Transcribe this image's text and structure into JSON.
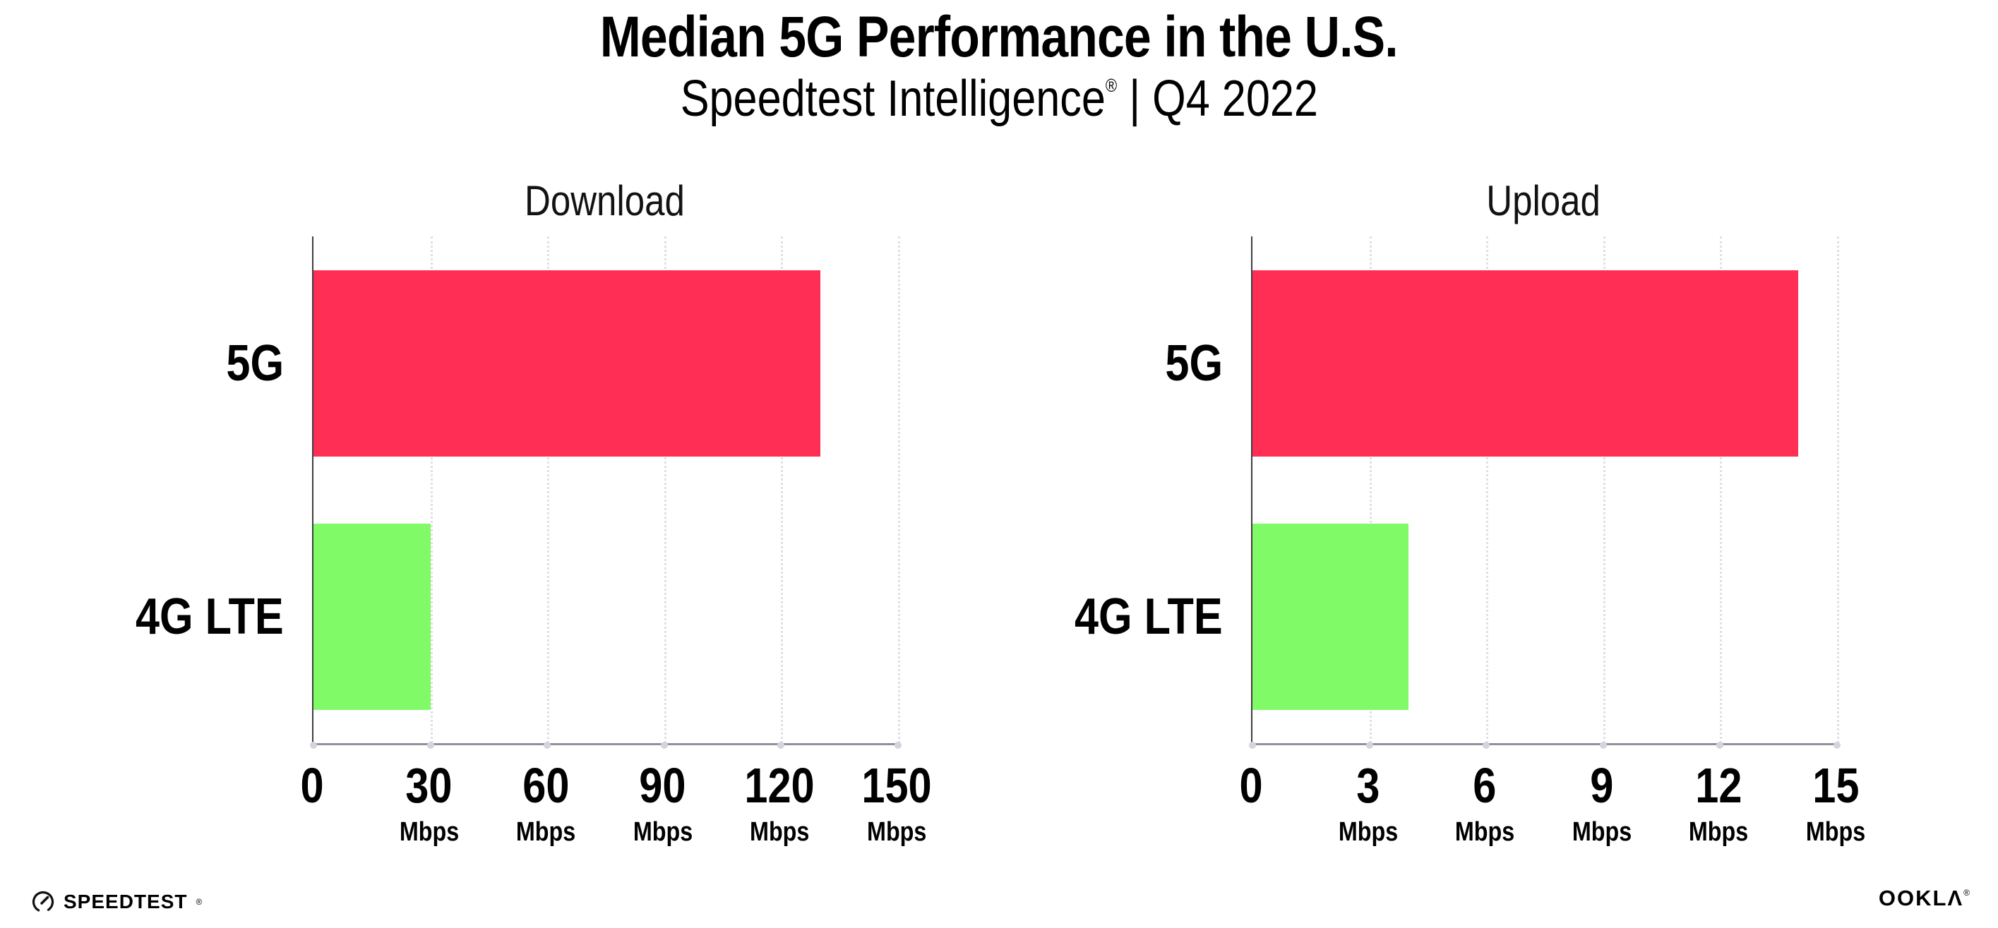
{
  "header": {
    "title": "Median 5G Performance in the U.S.",
    "subtitle_brand": "Speedtest Intelligence",
    "subtitle_reg": "®",
    "subtitle_sep": " | ",
    "subtitle_period": "Q4 2022"
  },
  "footer": {
    "speedtest_label": "SPEEDTEST",
    "speedtest_reg": "®",
    "ookla_label": "OOKLΛ",
    "ookla_reg": "®"
  },
  "colors": {
    "bar_5g": "#ff2e55",
    "bar_4g_lte": "#80fa66",
    "gridline": "#dfdfe8",
    "grid_dot": "#d4d4de",
    "x_axis": "#90909a",
    "y_axis": "#3e3e42"
  },
  "chart_data": [
    {
      "type": "bar",
      "orientation": "horizontal",
      "title": "Download",
      "categories": [
        "5G",
        "4G LTE"
      ],
      "values": [
        130,
        30
      ],
      "unit": "Mbps",
      "xlabel": "",
      "ylabel": "",
      "xlim": [
        0,
        150
      ],
      "ticks": [
        0,
        30,
        60,
        90,
        120,
        150
      ],
      "grid": "vertical-dotted",
      "legend": "none",
      "bar_colors": [
        "#ff2e55",
        "#80fa66"
      ]
    },
    {
      "type": "bar",
      "orientation": "horizontal",
      "title": "Upload",
      "categories": [
        "5G",
        "4G LTE"
      ],
      "values": [
        14,
        4
      ],
      "unit": "Mbps",
      "xlabel": "",
      "ylabel": "",
      "xlim": [
        0,
        15
      ],
      "ticks": [
        0,
        3,
        6,
        9,
        12,
        15
      ],
      "grid": "vertical-dotted",
      "legend": "none",
      "bar_colors": [
        "#ff2e55",
        "#80fa66"
      ]
    }
  ]
}
